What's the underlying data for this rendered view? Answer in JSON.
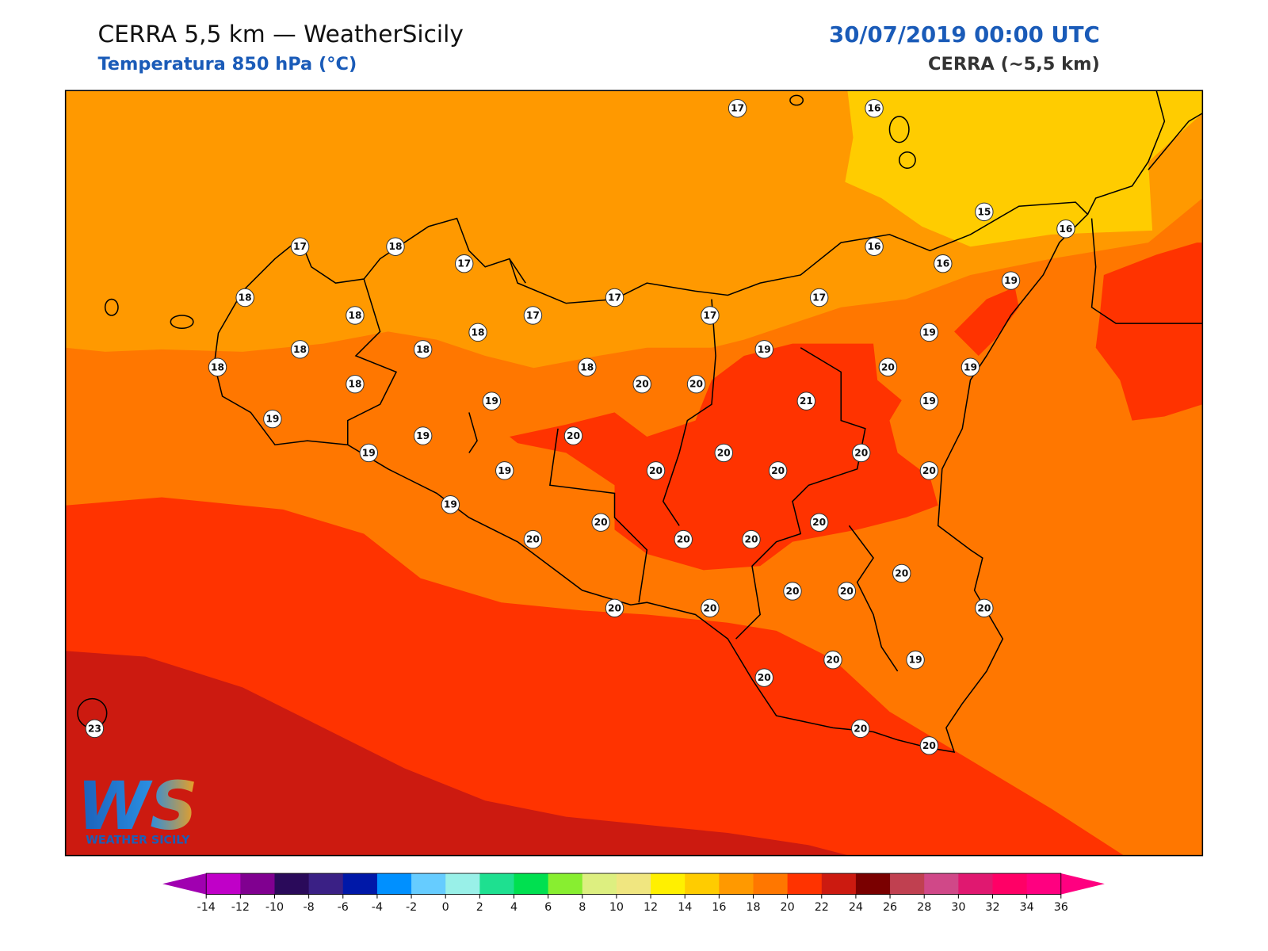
{
  "header": {
    "title": "CERRA 5,5 km — WeatherSicily",
    "subtitle": "Temperatura 850 hPa (°C)",
    "datetime": "30/07/2019 00:00 UTC",
    "model": "CERRA (~5,5 km)"
  },
  "logo": {
    "mark": "WS",
    "text": "WEATHER SICILY"
  },
  "stations": [
    17,
    16,
    15,
    16,
    17,
    18,
    17,
    16,
    16,
    19,
    18,
    18,
    17,
    17,
    17,
    17,
    18,
    18,
    18,
    19,
    19,
    18,
    18,
    20,
    20,
    20,
    19,
    18,
    19,
    21,
    19,
    19,
    19,
    20,
    19,
    20,
    20,
    19,
    20,
    20,
    20,
    19,
    20,
    20,
    20,
    20,
    20,
    20,
    20,
    20,
    20,
    20,
    20,
    20,
    19,
    20,
    20,
    20,
    23
  ],
  "colorbar": {
    "ticks": [
      -14,
      -12,
      -10,
      -8,
      -6,
      -4,
      -2,
      0,
      2,
      4,
      6,
      8,
      10,
      12,
      14,
      16,
      18,
      20,
      22,
      24,
      26,
      28,
      30,
      32,
      34,
      36
    ],
    "colors": [
      "#c000c8",
      "#800090",
      "#2a0a5a",
      "#3a2085",
      "#0018a8",
      "#0090ff",
      "#66ccff",
      "#99f0e8",
      "#1ee090",
      "#00e050",
      "#88ee30",
      "#ddef80",
      "#f0e680",
      "#fff000",
      "#ffcc00",
      "#ff9900",
      "#ff7700",
      "#ff3300",
      "#cc1a10",
      "#7a0000",
      "#c04050",
      "#d04888",
      "#e01870",
      "#ff0066",
      "#ff0080"
    ],
    "under": "#a000b0",
    "over": "#ff0080"
  }
}
